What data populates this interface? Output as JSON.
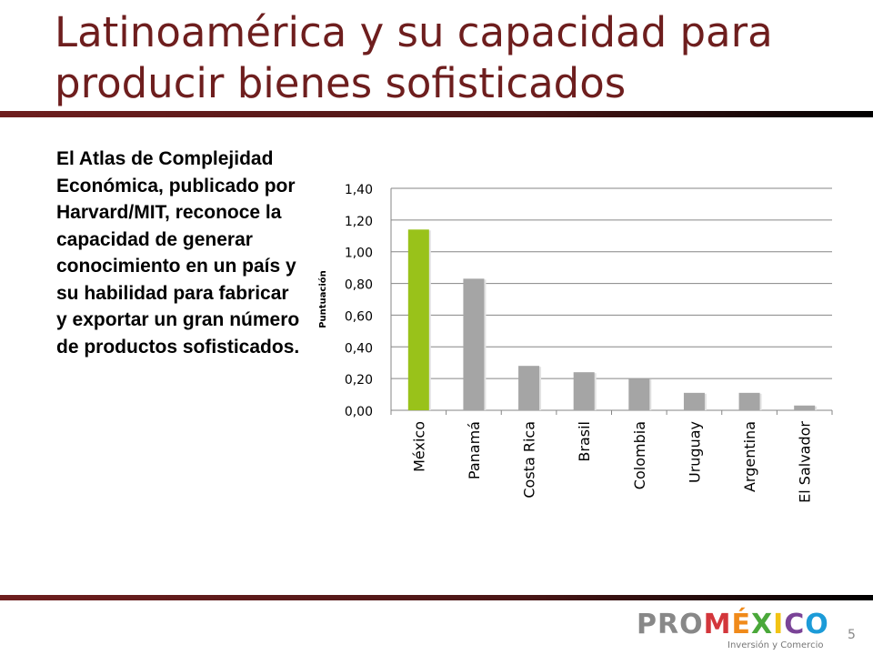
{
  "slide": {
    "title_lines": [
      "Latinoamérica y su capacidad para",
      "producir bienes sofisticados"
    ],
    "body_text": "El Atlas de Complejidad Económica, publicado por Harvard/MIT, reconoce la capacidad de generar conocimiento en un país y su habilidad para fabricar y exportar un gran número de productos sofisticados.",
    "page_number": "5"
  },
  "logo": {
    "pro": "PRO",
    "mexico_letters": [
      "M",
      "É",
      "X",
      "I",
      "C",
      "O"
    ],
    "tagline": "Inversión y Comercio"
  },
  "chart_data": {
    "type": "bar",
    "categories": [
      "México",
      "Panamá",
      "Costa Rica",
      "Brasil",
      "Colombia",
      "Uruguay",
      "Argentina",
      "El Salvador"
    ],
    "values": [
      1.14,
      0.83,
      0.28,
      0.24,
      0.2,
      0.11,
      0.11,
      0.03
    ],
    "tick_labels": [
      "0,00",
      "0,20",
      "0,40",
      "0,60",
      "0,80",
      "1,00",
      "1,20",
      "1,40"
    ],
    "ylabel": "Puntuación",
    "ylim": [
      0,
      1.4
    ],
    "grid": true,
    "legend": false,
    "colors": {
      "highlight": "#99c21a",
      "default": "#a5a5a5",
      "grid": "#868686"
    },
    "highlight_index": 0
  }
}
